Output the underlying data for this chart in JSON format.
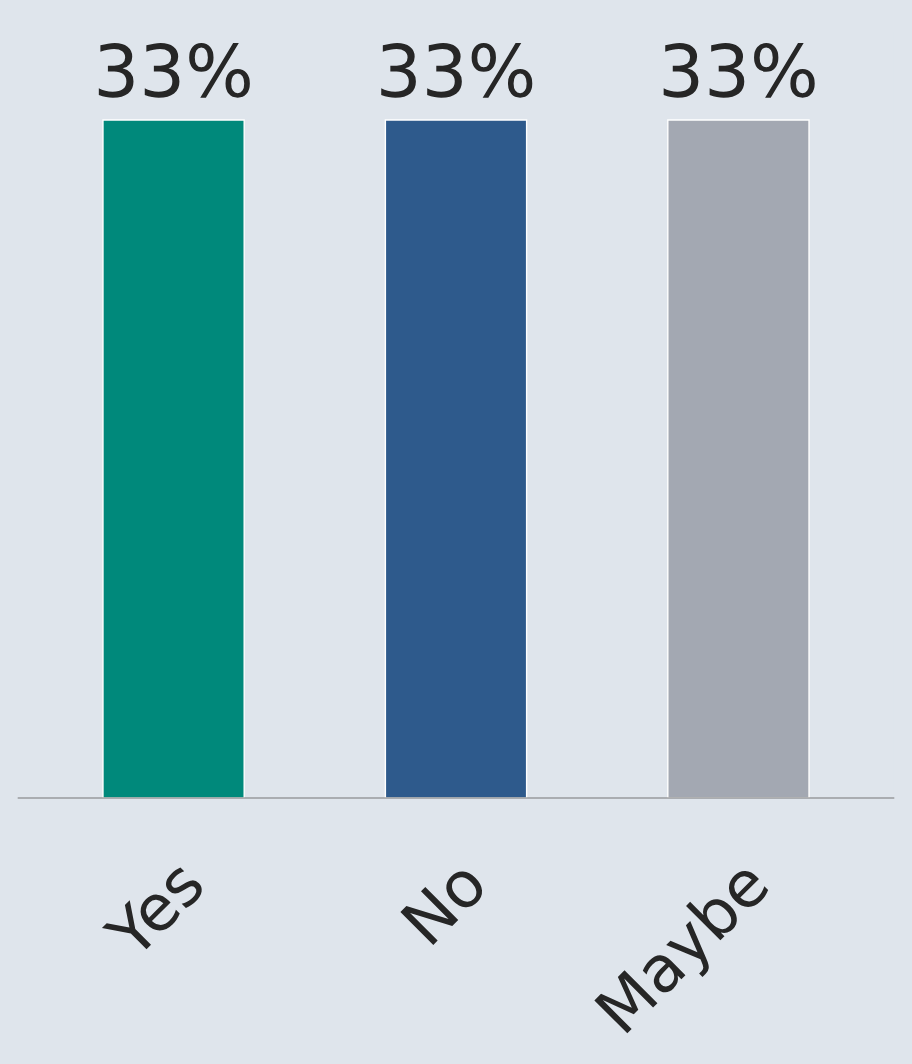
{
  "chart_data": {
    "type": "bar",
    "categories": [
      "Yes",
      "No",
      "Maybe"
    ],
    "values": [
      33,
      33,
      33
    ],
    "colors": [
      "#00897b",
      "#2e5a8c",
      "#a3a8b2"
    ],
    "value_labels": [
      "33%",
      "33%",
      "33%"
    ],
    "grid": false,
    "legend": false
  }
}
